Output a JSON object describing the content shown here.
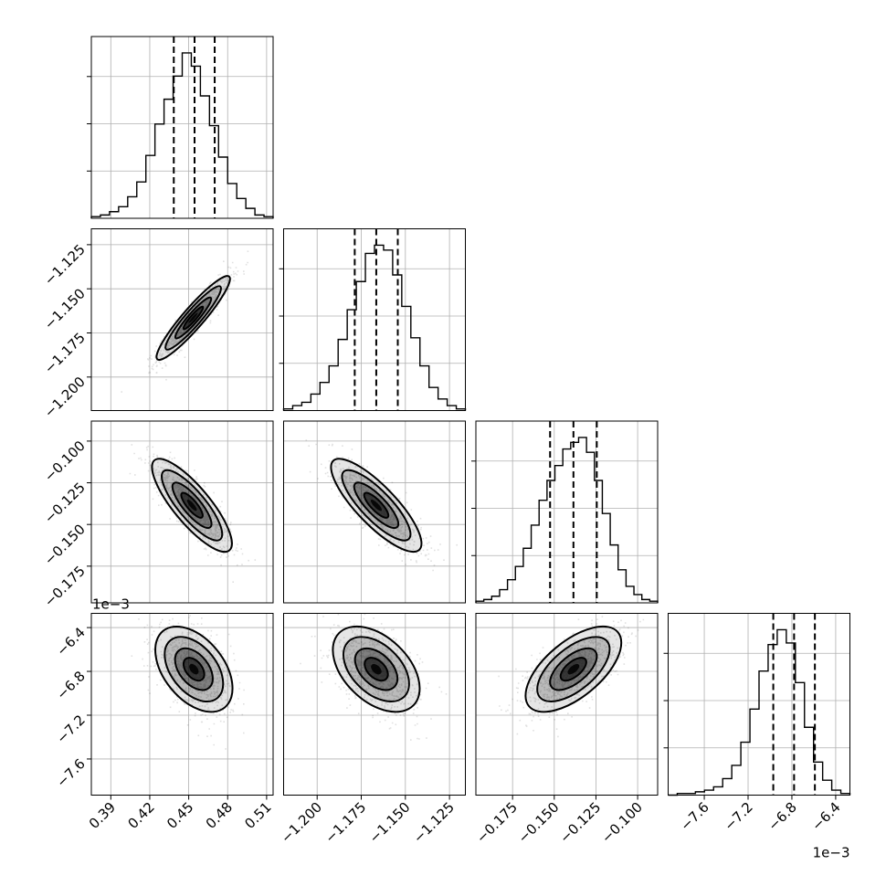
{
  "chart_data": {
    "type": "corner",
    "n_params": 4,
    "params": [
      {
        "range": [
          0.375,
          0.515
        ],
        "ticks": [
          0.39,
          0.42,
          0.45,
          0.48,
          0.51
        ],
        "tick_labels": [
          "0.39",
          "0.42",
          "0.45",
          "0.48",
          "0.51"
        ],
        "quantiles": [
          0.4385,
          0.4545,
          0.47
        ],
        "hist_bin_heights": [
          0.01,
          0.02,
          0.04,
          0.07,
          0.13,
          0.22,
          0.38,
          0.57,
          0.72,
          0.86,
          1.0,
          0.92,
          0.74,
          0.56,
          0.37,
          0.21,
          0.12,
          0.06,
          0.02,
          0.01
        ]
      },
      {
        "range": [
          -1.219,
          -1.116
        ],
        "ticks": [
          -1.2,
          -1.175,
          -1.15,
          -1.125
        ],
        "tick_labels": [
          "−1.200",
          "−1.175",
          "−1.150",
          "−1.125"
        ],
        "quantiles": [
          -1.1787,
          -1.1665,
          -1.1543
        ],
        "hist_bin_heights": [
          0.01,
          0.03,
          0.05,
          0.1,
          0.17,
          0.27,
          0.43,
          0.61,
          0.78,
          0.95,
          1.0,
          0.97,
          0.82,
          0.63,
          0.44,
          0.27,
          0.14,
          0.07,
          0.03,
          0.01
        ]
      },
      {
        "range": [
          -0.197,
          -0.088
        ],
        "ticks": [
          -0.175,
          -0.15,
          -0.125,
          -0.1
        ],
        "tick_labels": [
          "−0.175",
          "−0.150",
          "−0.125",
          "−0.100"
        ],
        "quantiles": [
          -0.1525,
          -0.1385,
          -0.1245
        ],
        "hist_bin_heights": [
          0.01,
          0.02,
          0.04,
          0.08,
          0.14,
          0.22,
          0.33,
          0.47,
          0.62,
          0.74,
          0.83,
          0.93,
          0.97,
          1.0,
          0.91,
          0.74,
          0.54,
          0.35,
          0.2,
          0.1,
          0.05,
          0.02,
          0.01
        ]
      },
      {
        "range": [
          -7.93,
          -6.27
        ],
        "ticks": [
          -7.6,
          -7.2,
          -6.8,
          -6.4
        ],
        "tick_labels": [
          "−7.6",
          "−7.2",
          "−6.8",
          "−6.4"
        ],
        "multiplier_label": "1e−3",
        "quantiles": [
          -6.97,
          -6.78,
          -6.59
        ],
        "hist_bin_heights": [
          0.0,
          0.01,
          0.01,
          0.02,
          0.03,
          0.05,
          0.1,
          0.18,
          0.32,
          0.52,
          0.75,
          0.91,
          1.0,
          0.92,
          0.68,
          0.41,
          0.2,
          0.09,
          0.03,
          0.01
        ]
      }
    ],
    "pairs": [
      {
        "row": 1,
        "col": 0,
        "type": "scatter-density",
        "center": [
          0.4535,
          -1.1665
        ],
        "sd": [
          0.0138,
          0.0116
        ],
        "correlation": 0.93
      },
      {
        "row": 2,
        "col": 0,
        "type": "scatter-density",
        "center": [
          0.4525,
          -0.1385
        ],
        "sd": [
          0.015,
          0.0136
        ],
        "correlation": -0.82
      },
      {
        "row": 2,
        "col": 1,
        "type": "scatter-density",
        "center": [
          -1.1665,
          -0.1385
        ],
        "sd": [
          0.0125,
          0.0136
        ],
        "correlation": -0.82
      },
      {
        "row": 3,
        "col": 0,
        "type": "scatter-density",
        "center": [
          0.454,
          -6.78
        ],
        "sd": [
          0.0145,
          0.19
        ],
        "correlation": -0.45
      },
      {
        "row": 3,
        "col": 1,
        "type": "scatter-density",
        "center": [
          -1.1665,
          -6.78
        ],
        "sd": [
          0.012,
          0.19
        ],
        "correlation": -0.45
      },
      {
        "row": 3,
        "col": 2,
        "type": "scatter-density",
        "center": [
          -0.1385,
          -6.78
        ],
        "sd": [
          0.014,
          0.19
        ],
        "correlation": 0.62
      }
    ],
    "contour_levels": [
      "0.5-sigma",
      "1-sigma",
      "1.5-sigma",
      "2-sigma"
    ],
    "grid": true,
    "colors": {
      "line": "#000000",
      "grid": "#b0b0b0",
      "points": "#000000"
    }
  }
}
